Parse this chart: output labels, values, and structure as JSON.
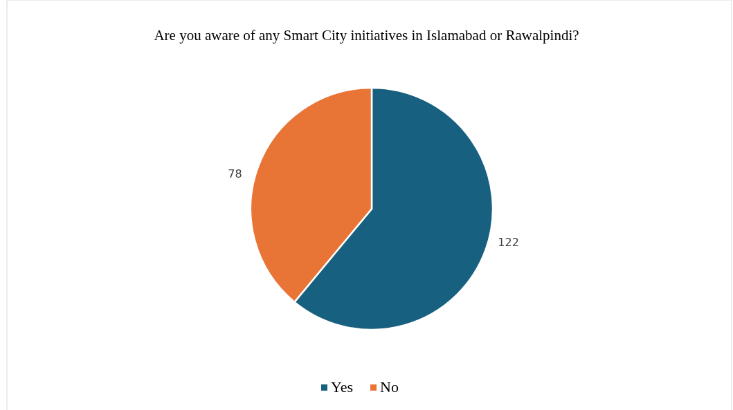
{
  "chart_data": {
    "type": "pie",
    "title": "Are you aware of any Smart City initiatives in Islamabad or Rawalpindi?",
    "categories": [
      "Yes",
      "No"
    ],
    "values": [
      122,
      78
    ],
    "colors": [
      "#17607f",
      "#e87435"
    ],
    "data_labels": true,
    "legend": "bottom"
  }
}
